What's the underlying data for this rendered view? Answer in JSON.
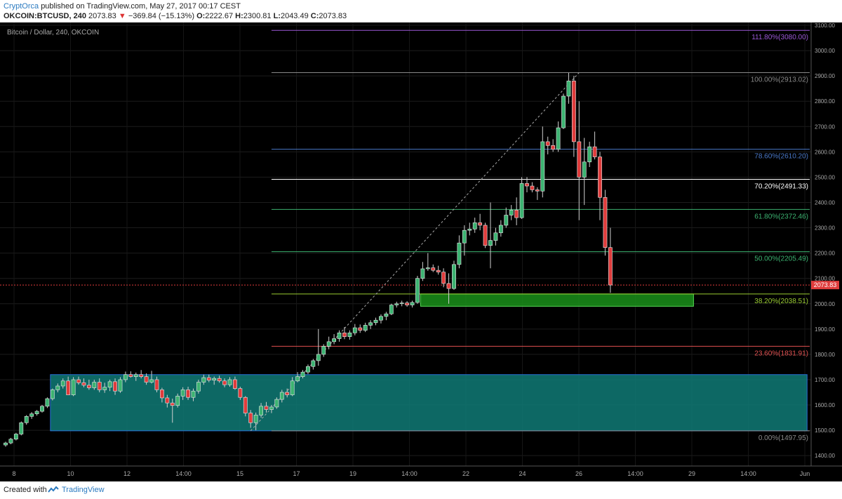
{
  "header": {
    "publisher": "CryptOrca",
    "published_text": "published on TradingView.com, May 27, 2017 00:17 CEST",
    "symbol": "OKCOIN:BTCUSD, 240",
    "last": "2073.83",
    "change": "−369.84 (−15.13%)",
    "o_label": "O:",
    "o": "2222.67",
    "h_label": "H:",
    "h": "2300.81",
    "l_label": "L:",
    "l": "2043.49",
    "c_label": "C:",
    "c": "2073.83"
  },
  "chart_data": {
    "type": "candlestick",
    "title": "Bitcoin / Dollar, 240, OKCOIN",
    "background": "#000000",
    "up_color": "#3cb371",
    "down_color": "#e03c3c",
    "ylim": [
      1370,
      3100
    ],
    "y_ticks": [
      1400,
      1500,
      1600,
      1700,
      1800,
      1900,
      2000,
      2100,
      2200,
      2300,
      2400,
      2500,
      2600,
      2700,
      2800,
      2900,
      3000,
      3100
    ],
    "y_tick_labels": [
      "1400.00",
      "1500.00",
      "1600.00",
      "1700.00",
      "1800.00",
      "1900.00",
      "2000.00",
      "2100.00",
      "2200.00",
      "2300.00",
      "2400.00",
      "2500.00",
      "2600.00",
      "2700.00",
      "2800.00",
      "2900.00",
      "3000.00",
      "3100.00"
    ],
    "x_tick_labels": [
      "8",
      "10",
      "12",
      "14:00",
      "15",
      "17",
      "19",
      "14:00",
      "22",
      "24",
      "26",
      "14:00",
      "29",
      "14:00",
      "Jun"
    ],
    "last_price": 2073.83,
    "last_price_label": "2073.83",
    "candles": [
      [
        1442,
        1455,
        1435,
        1450
      ],
      [
        1450,
        1470,
        1445,
        1465
      ],
      [
        1465,
        1490,
        1460,
        1485
      ],
      [
        1485,
        1535,
        1480,
        1530
      ],
      [
        1530,
        1560,
        1522,
        1555
      ],
      [
        1555,
        1572,
        1545,
        1565
      ],
      [
        1565,
        1580,
        1558,
        1575
      ],
      [
        1575,
        1600,
        1570,
        1595
      ],
      [
        1595,
        1630,
        1588,
        1625
      ],
      [
        1625,
        1665,
        1618,
        1660
      ],
      [
        1660,
        1685,
        1650,
        1675
      ],
      [
        1675,
        1705,
        1665,
        1695
      ],
      [
        1695,
        1712,
        1640,
        1640
      ],
      [
        1640,
        1710,
        1635,
        1700
      ],
      [
        1700,
        1712,
        1680,
        1688
      ],
      [
        1688,
        1705,
        1670,
        1678
      ],
      [
        1678,
        1700,
        1660,
        1668
      ],
      [
        1668,
        1700,
        1660,
        1690
      ],
      [
        1690,
        1705,
        1650,
        1660
      ],
      [
        1660,
        1688,
        1648,
        1670
      ],
      [
        1670,
        1700,
        1655,
        1692
      ],
      [
        1692,
        1705,
        1640,
        1655
      ],
      [
        1655,
        1710,
        1648,
        1700
      ],
      [
        1700,
        1732,
        1690,
        1720
      ],
      [
        1720,
        1733,
        1708,
        1712
      ],
      [
        1712,
        1728,
        1695,
        1720
      ],
      [
        1720,
        1738,
        1705,
        1712
      ],
      [
        1712,
        1725,
        1680,
        1690
      ],
      [
        1690,
        1735,
        1685,
        1700
      ],
      [
        1700,
        1712,
        1650,
        1660
      ],
      [
        1660,
        1668,
        1610,
        1628
      ],
      [
        1628,
        1640,
        1590,
        1608
      ],
      [
        1608,
        1625,
        1530,
        1598
      ],
      [
        1598,
        1645,
        1590,
        1635
      ],
      [
        1635,
        1670,
        1620,
        1660
      ],
      [
        1660,
        1672,
        1620,
        1630
      ],
      [
        1630,
        1665,
        1615,
        1655
      ],
      [
        1655,
        1700,
        1645,
        1690
      ],
      [
        1690,
        1720,
        1680,
        1708
      ],
      [
        1708,
        1720,
        1690,
        1698
      ],
      [
        1698,
        1712,
        1680,
        1705
      ],
      [
        1705,
        1716,
        1688,
        1695
      ],
      [
        1695,
        1705,
        1670,
        1680
      ],
      [
        1680,
        1710,
        1672,
        1700
      ],
      [
        1700,
        1712,
        1660,
        1665
      ],
      [
        1665,
        1672,
        1620,
        1630
      ],
      [
        1630,
        1635,
        1555,
        1568
      ],
      [
        1568,
        1580,
        1510,
        1530
      ],
      [
        1530,
        1570,
        1500,
        1560
      ],
      [
        1560,
        1608,
        1550,
        1595
      ],
      [
        1595,
        1612,
        1570,
        1582
      ],
      [
        1582,
        1600,
        1568,
        1592
      ],
      [
        1592,
        1630,
        1585,
        1622
      ],
      [
        1622,
        1660,
        1610,
        1650
      ],
      [
        1650,
        1665,
        1630,
        1640
      ],
      [
        1640,
        1710,
        1635,
        1695
      ],
      [
        1695,
        1730,
        1690,
        1712
      ],
      [
        1712,
        1738,
        1705,
        1730
      ],
      [
        1730,
        1760,
        1722,
        1752
      ],
      [
        1752,
        1782,
        1740,
        1775
      ],
      [
        1775,
        1900,
        1755,
        1800
      ],
      [
        1800,
        1840,
        1790,
        1832
      ],
      [
        1832,
        1870,
        1820,
        1850
      ],
      [
        1850,
        1880,
        1840,
        1862
      ],
      [
        1862,
        1895,
        1850,
        1885
      ],
      [
        1885,
        1908,
        1860,
        1870
      ],
      [
        1870,
        1895,
        1858,
        1885
      ],
      [
        1885,
        1920,
        1875,
        1905
      ],
      [
        1905,
        1918,
        1885,
        1895
      ],
      [
        1895,
        1925,
        1888,
        1915
      ],
      [
        1915,
        1935,
        1900,
        1925
      ],
      [
        1925,
        1945,
        1915,
        1935
      ],
      [
        1935,
        1958,
        1922,
        1950
      ],
      [
        1950,
        1968,
        1935,
        1960
      ],
      [
        1960,
        2000,
        1955,
        1995
      ],
      [
        1995,
        2008,
        1985,
        2000
      ],
      [
        2000,
        2012,
        1990,
        2003
      ],
      [
        2003,
        2010,
        1988,
        1995
      ],
      [
        1995,
        2012,
        1985,
        2005
      ],
      [
        2005,
        2110,
        2000,
        2100
      ],
      [
        2100,
        2165,
        2090,
        2138
      ],
      [
        2138,
        2200,
        2130,
        2142
      ],
      [
        2142,
        2155,
        2125,
        2132
      ],
      [
        2132,
        2150,
        2115,
        2125
      ],
      [
        2125,
        2140,
        2065,
        2080
      ],
      [
        2080,
        2120,
        2000,
        2060
      ],
      [
        2060,
        2170,
        2055,
        2155
      ],
      [
        2155,
        2270,
        2140,
        2240
      ],
      [
        2240,
        2310,
        2190,
        2290
      ],
      [
        2290,
        2320,
        2270,
        2295
      ],
      [
        2295,
        2340,
        2280,
        2320
      ],
      [
        2320,
        2355,
        2290,
        2310
      ],
      [
        2310,
        2320,
        2220,
        2230
      ],
      [
        2230,
        2400,
        2140,
        2250
      ],
      [
        2250,
        2300,
        2230,
        2280
      ],
      [
        2280,
        2330,
        2265,
        2310
      ],
      [
        2310,
        2380,
        2300,
        2350
      ],
      [
        2350,
        2390,
        2330,
        2370
      ],
      [
        2370,
        2420,
        2310,
        2340
      ],
      [
        2340,
        2500,
        2335,
        2475
      ],
      [
        2475,
        2500,
        2440,
        2465
      ],
      [
        2465,
        2480,
        2440,
        2450
      ],
      [
        2450,
        2460,
        2410,
        2445
      ],
      [
        2445,
        2700,
        2420,
        2640
      ],
      [
        2640,
        2660,
        2590,
        2625
      ],
      [
        2625,
        2650,
        2600,
        2610
      ],
      [
        2610,
        2720,
        2600,
        2695
      ],
      [
        2695,
        2830,
        2690,
        2820
      ],
      [
        2820,
        2912,
        2790,
        2880
      ],
      [
        2880,
        2900,
        2580,
        2640
      ],
      [
        2640,
        2800,
        2330,
        2500
      ],
      [
        2500,
        2655,
        2390,
        2560
      ],
      [
        2560,
        2640,
        2540,
        2620
      ],
      [
        2620,
        2680,
        2570,
        2580
      ],
      [
        2580,
        2600,
        2330,
        2420
      ],
      [
        2420,
        2450,
        2190,
        2222
      ],
      [
        2222,
        2300,
        2043,
        2074
      ]
    ],
    "fib_levels": [
      {
        "label": "111.80%(3080.00)",
        "value": 3080.0,
        "color": "#9b59d6"
      },
      {
        "label": "100.00%(2913.02)",
        "value": 2913.02,
        "color": "#8a8a8a"
      },
      {
        "label": "78.60%(2610.20)",
        "value": 2610.2,
        "color": "#4a78c8"
      },
      {
        "label": "70.20%(2491.33)",
        "value": 2491.33,
        "color": "#ffffff"
      },
      {
        "label": "61.80%(2372.46)",
        "value": 2372.46,
        "color": "#3cb371"
      },
      {
        "label": "50.00%(2205.49)",
        "value": 2205.49,
        "color": "#3cb371"
      },
      {
        "label": "38.20%(2038.51)",
        "value": 2038.51,
        "color": "#9acd32"
      },
      {
        "label": "23.60%(1831.91)",
        "value": 1831.91,
        "color": "#e05050"
      },
      {
        "label": "0.00%(1497.95)",
        "value": 1497.95,
        "color": "#8a8a8a"
      }
    ],
    "zones": [
      {
        "name": "support-zone-low",
        "from_candle": 9,
        "to_date_frac": 0.995,
        "price_low": 1497.95,
        "price_high": 1720,
        "fill": "#0f7a75",
        "stroke": "#2a6fd6"
      },
      {
        "name": "support-zone-fib",
        "from_candle": 80,
        "to_date_frac": 0.855,
        "price_low": 1990,
        "price_high": 2038.51,
        "fill": "#1a8f1a",
        "stroke": "#55dd55"
      }
    ]
  },
  "footer": {
    "created": "Created with",
    "brand": "TradingView"
  }
}
